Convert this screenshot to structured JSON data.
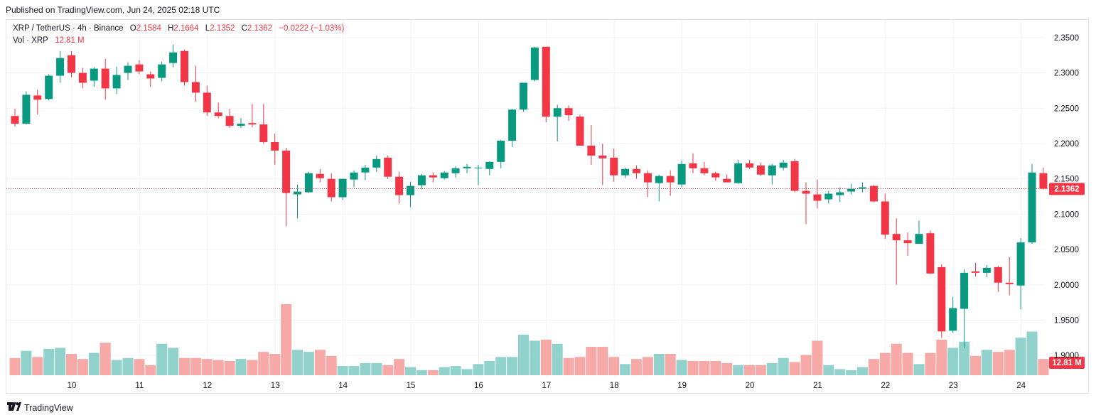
{
  "header": {
    "published": "Published on TradingView.com, Jun 24, 2025 02:18 UTC"
  },
  "legend": {
    "symbol": "XRP / TetherUS · 4h · Binance",
    "open_label": "O",
    "open": "2.1584",
    "high_label": "H",
    "high": "2.1664",
    "low_label": "L",
    "low": "2.1352",
    "close_label": "C",
    "close": "2.1362",
    "change": "−0.0222 (−1.03%)",
    "vol_label": "Vol · XRP",
    "vol_value": "12.81 M"
  },
  "footer": {
    "brand": "TradingView"
  },
  "colors": {
    "up": "#089981",
    "down": "#f23645",
    "vol_up": "#92d2cc",
    "vol_down": "#f7a9a7",
    "grid": "#f0f3fa",
    "price_line": "#f23645"
  },
  "chart_data": {
    "type": "candlestick",
    "title": "XRP / TetherUS · 4h · Binance",
    "ylim": [
      1.87,
      2.375
    ],
    "y_ticks": [
      "2.3500",
      "2.3000",
      "2.2500",
      "2.2000",
      "2.1500",
      "2.1000",
      "2.0500",
      "2.0000",
      "1.9500",
      "1.9000"
    ],
    "x_ticks": [
      "10",
      "11",
      "12",
      "13",
      "14",
      "15",
      "16",
      "17",
      "18",
      "19",
      "20",
      "21",
      "22",
      "23",
      "24"
    ],
    "last_price_label": "2.1362",
    "last_price": 2.1362,
    "volume_label": "12.81 M",
    "volume_max": 70,
    "candles": [
      [
        2.239,
        2.249,
        2.224,
        2.228,
        17
      ],
      [
        2.228,
        2.274,
        2.227,
        2.269,
        24
      ],
      [
        2.268,
        2.276,
        2.241,
        2.262,
        18
      ],
      [
        2.263,
        2.298,
        2.261,
        2.296,
        26
      ],
      [
        2.296,
        2.331,
        2.286,
        2.321,
        27
      ],
      [
        2.325,
        2.331,
        2.294,
        2.3,
        21
      ],
      [
        2.3,
        2.307,
        2.278,
        2.286,
        16
      ],
      [
        2.289,
        2.308,
        2.28,
        2.306,
        22
      ],
      [
        2.306,
        2.32,
        2.262,
        2.278,
        32
      ],
      [
        2.278,
        2.309,
        2.27,
        2.297,
        15
      ],
      [
        2.3,
        2.315,
        2.29,
        2.31,
        17
      ],
      [
        2.312,
        2.318,
        2.298,
        2.302,
        16
      ],
      [
        2.298,
        2.302,
        2.28,
        2.292,
        10
      ],
      [
        2.293,
        2.316,
        2.288,
        2.312,
        31
      ],
      [
        2.314,
        2.34,
        2.308,
        2.329,
        27
      ],
      [
        2.331,
        2.333,
        2.282,
        2.287,
        17
      ],
      [
        2.287,
        2.31,
        2.259,
        2.272,
        17
      ],
      [
        2.272,
        2.282,
        2.239,
        2.244,
        16
      ],
      [
        2.244,
        2.258,
        2.236,
        2.239,
        15
      ],
      [
        2.239,
        2.249,
        2.222,
        2.225,
        14
      ],
      [
        2.225,
        2.236,
        2.222,
        2.228,
        16
      ],
      [
        2.229,
        2.256,
        2.223,
        2.227,
        15
      ],
      [
        2.227,
        2.256,
        2.2,
        2.202,
        23
      ],
      [
        2.202,
        2.214,
        2.17,
        2.19,
        21
      ],
      [
        2.19,
        2.194,
        2.083,
        2.13,
        70
      ],
      [
        2.128,
        2.142,
        2.094,
        2.132,
        25
      ],
      [
        2.131,
        2.16,
        2.13,
        2.158,
        23
      ],
      [
        2.157,
        2.164,
        2.145,
        2.151,
        25
      ],
      [
        2.15,
        2.158,
        2.118,
        2.124,
        19
      ],
      [
        2.124,
        2.15,
        2.12,
        2.15,
        9
      ],
      [
        2.149,
        2.162,
        2.138,
        2.159,
        9
      ],
      [
        2.159,
        2.17,
        2.148,
        2.166,
        12
      ],
      [
        2.166,
        2.183,
        2.16,
        2.178,
        12
      ],
      [
        2.18,
        2.183,
        2.15,
        2.153,
        10
      ],
      [
        2.153,
        2.16,
        2.115,
        2.127,
        16
      ],
      [
        2.127,
        2.146,
        2.11,
        2.14,
        8
      ],
      [
        2.141,
        2.157,
        2.135,
        2.155,
        5
      ],
      [
        2.155,
        2.159,
        2.145,
        2.152,
        5
      ],
      [
        2.151,
        2.161,
        2.149,
        2.159,
        8
      ],
      [
        2.158,
        2.168,
        2.152,
        2.165,
        9
      ],
      [
        2.165,
        2.171,
        2.158,
        2.167,
        6
      ],
      [
        2.166,
        2.17,
        2.141,
        2.166,
        11
      ],
      [
        2.164,
        2.175,
        2.155,
        2.174,
        14
      ],
      [
        2.174,
        2.205,
        2.165,
        2.204,
        18
      ],
      [
        2.204,
        2.249,
        2.195,
        2.248,
        18
      ],
      [
        2.248,
        2.286,
        2.245,
        2.286,
        40
      ],
      [
        2.29,
        2.337,
        2.288,
        2.336,
        34
      ],
      [
        2.337,
        2.337,
        2.23,
        2.238,
        35
      ],
      [
        2.238,
        2.255,
        2.203,
        2.25,
        31
      ],
      [
        2.25,
        2.254,
        2.232,
        2.24,
        17
      ],
      [
        2.238,
        2.241,
        2.199,
        2.197,
        18
      ],
      [
        2.197,
        2.226,
        2.17,
        2.183,
        28
      ],
      [
        2.183,
        2.2,
        2.141,
        2.179,
        28
      ],
      [
        2.18,
        2.193,
        2.146,
        2.155,
        18
      ],
      [
        2.155,
        2.166,
        2.151,
        2.164,
        11
      ],
      [
        2.164,
        2.169,
        2.15,
        2.158,
        16
      ],
      [
        2.158,
        2.162,
        2.124,
        2.145,
        18
      ],
      [
        2.144,
        2.156,
        2.118,
        2.154,
        21
      ],
      [
        2.154,
        2.162,
        2.126,
        2.145,
        21
      ],
      [
        2.142,
        2.176,
        2.138,
        2.171,
        15
      ],
      [
        2.172,
        2.186,
        2.158,
        2.165,
        14
      ],
      [
        2.165,
        2.174,
        2.155,
        2.158,
        14
      ],
      [
        2.158,
        2.16,
        2.147,
        2.152,
        14
      ],
      [
        2.15,
        2.156,
        2.146,
        2.145,
        12
      ],
      [
        2.144,
        2.177,
        2.143,
        2.172,
        10
      ],
      [
        2.172,
        2.177,
        2.164,
        2.166,
        10
      ],
      [
        2.169,
        2.173,
        2.154,
        2.156,
        10
      ],
      [
        2.155,
        2.171,
        2.142,
        2.169,
        12
      ],
      [
        2.166,
        2.177,
        2.162,
        2.173,
        17
      ],
      [
        2.175,
        2.178,
        2.131,
        2.133,
        13
      ],
      [
        2.133,
        2.145,
        2.086,
        2.129,
        20
      ],
      [
        2.128,
        2.149,
        2.108,
        2.119,
        34
      ],
      [
        2.121,
        2.133,
        2.115,
        2.129,
        10
      ],
      [
        2.127,
        2.138,
        2.117,
        2.131,
        6
      ],
      [
        2.132,
        2.143,
        2.128,
        2.136,
        5
      ],
      [
        2.136,
        2.145,
        2.131,
        2.138,
        8
      ],
      [
        2.14,
        2.141,
        2.117,
        2.118,
        16
      ],
      [
        2.118,
        2.129,
        2.065,
        2.071,
        22
      ],
      [
        2.072,
        2.094,
        2.0,
        2.063,
        31
      ],
      [
        2.063,
        2.074,
        2.041,
        2.059,
        22
      ],
      [
        2.058,
        2.091,
        2.058,
        2.072,
        11
      ],
      [
        2.073,
        2.077,
        2.015,
        2.016,
        22
      ],
      [
        2.025,
        2.029,
        1.925,
        1.934,
        35
      ],
      [
        1.935,
        1.983,
        1.932,
        1.967,
        27
      ],
      [
        1.966,
        2.022,
        1.91,
        2.017,
        33
      ],
      [
        2.019,
        2.031,
        2.012,
        2.017,
        19
      ],
      [
        2.017,
        2.028,
        2.011,
        2.024,
        25
      ],
      [
        2.025,
        2.027,
        1.99,
        2.003,
        23
      ],
      [
        2.003,
        2.039,
        1.985,
        2.001,
        25
      ],
      [
        1.999,
        2.066,
        1.965,
        2.06,
        37
      ],
      [
        2.06,
        2.171,
        2.058,
        2.159,
        43
      ],
      [
        2.158,
        2.166,
        2.135,
        2.136,
        16
      ]
    ]
  }
}
